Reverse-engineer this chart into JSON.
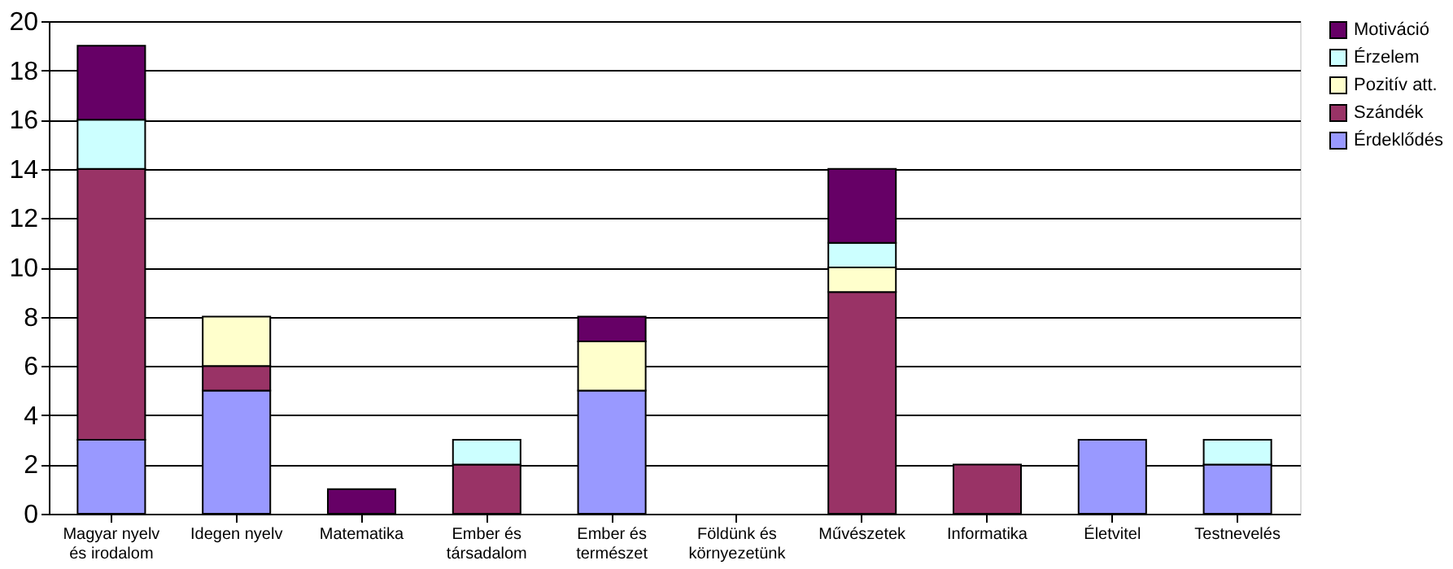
{
  "chart_data": {
    "type": "bar",
    "stacked": true,
    "categories": [
      "Magyar nyelv és irodalom",
      "Idegen nyelv",
      "Matematika",
      "Ember és társadalom",
      "Ember és természet",
      "Földünk és környezetünk",
      "Művészetek",
      "Informatika",
      "Életvitel",
      "Testnevelés"
    ],
    "series": [
      {
        "name": "Érdeklődés",
        "color": "#9999ff",
        "values": [
          3,
          5,
          0,
          0,
          5,
          0,
          0,
          0,
          3,
          2
        ]
      },
      {
        "name": "Szándék",
        "color": "#993366",
        "values": [
          11,
          1,
          0,
          2,
          0,
          0,
          9,
          2,
          0,
          0
        ]
      },
      {
        "name": "Pozitív att.",
        "color": "#ffffcc",
        "values": [
          0,
          2,
          0,
          0,
          2,
          0,
          1,
          0,
          0,
          0
        ]
      },
      {
        "name": "Érzelem",
        "color": "#ccffff",
        "values": [
          2,
          0,
          0,
          1,
          0,
          0,
          1,
          0,
          0,
          1
        ]
      },
      {
        "name": "Motiváció",
        "color": "#660066",
        "values": [
          3,
          0,
          1,
          0,
          1,
          0,
          3,
          0,
          0,
          0
        ]
      }
    ],
    "ylim": [
      0,
      20
    ],
    "yticks": [
      0,
      2,
      4,
      6,
      8,
      10,
      12,
      14,
      16,
      18,
      20
    ],
    "grid": "y",
    "legend": "right"
  }
}
